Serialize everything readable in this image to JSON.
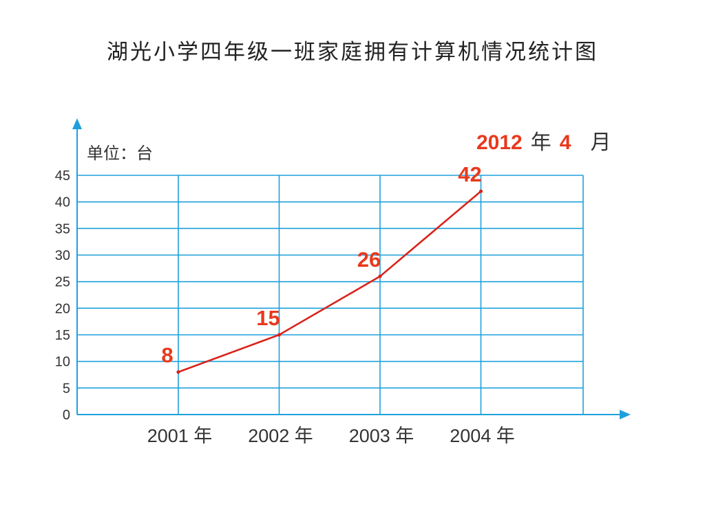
{
  "title": "湖光小学四年级一班家庭拥有计算机情况统计图",
  "unit_label": "单位：台",
  "date": {
    "year_value": "2012",
    "year_unit": "年",
    "month_value": "4",
    "month_unit": "月"
  },
  "colors": {
    "grid": "#1ea0dc",
    "line": "#d9231b",
    "label": "#e8391d",
    "axis_text": "#333333"
  },
  "chart_data": {
    "type": "line",
    "title": "湖光小学四年级一班家庭拥有计算机情况统计图",
    "ylabel": "单位：台",
    "xlabel": "",
    "categories": [
      "2001 年",
      "2002 年",
      "2003 年",
      "2004 年"
    ],
    "values": [
      8,
      15,
      26,
      42
    ],
    "data_labels": [
      "8",
      "15",
      "26",
      "42"
    ],
    "y_ticks": [
      0,
      5,
      10,
      15,
      20,
      25,
      30,
      35,
      40,
      45
    ],
    "ylim": [
      0,
      45
    ],
    "grid": true,
    "legend": "none"
  }
}
